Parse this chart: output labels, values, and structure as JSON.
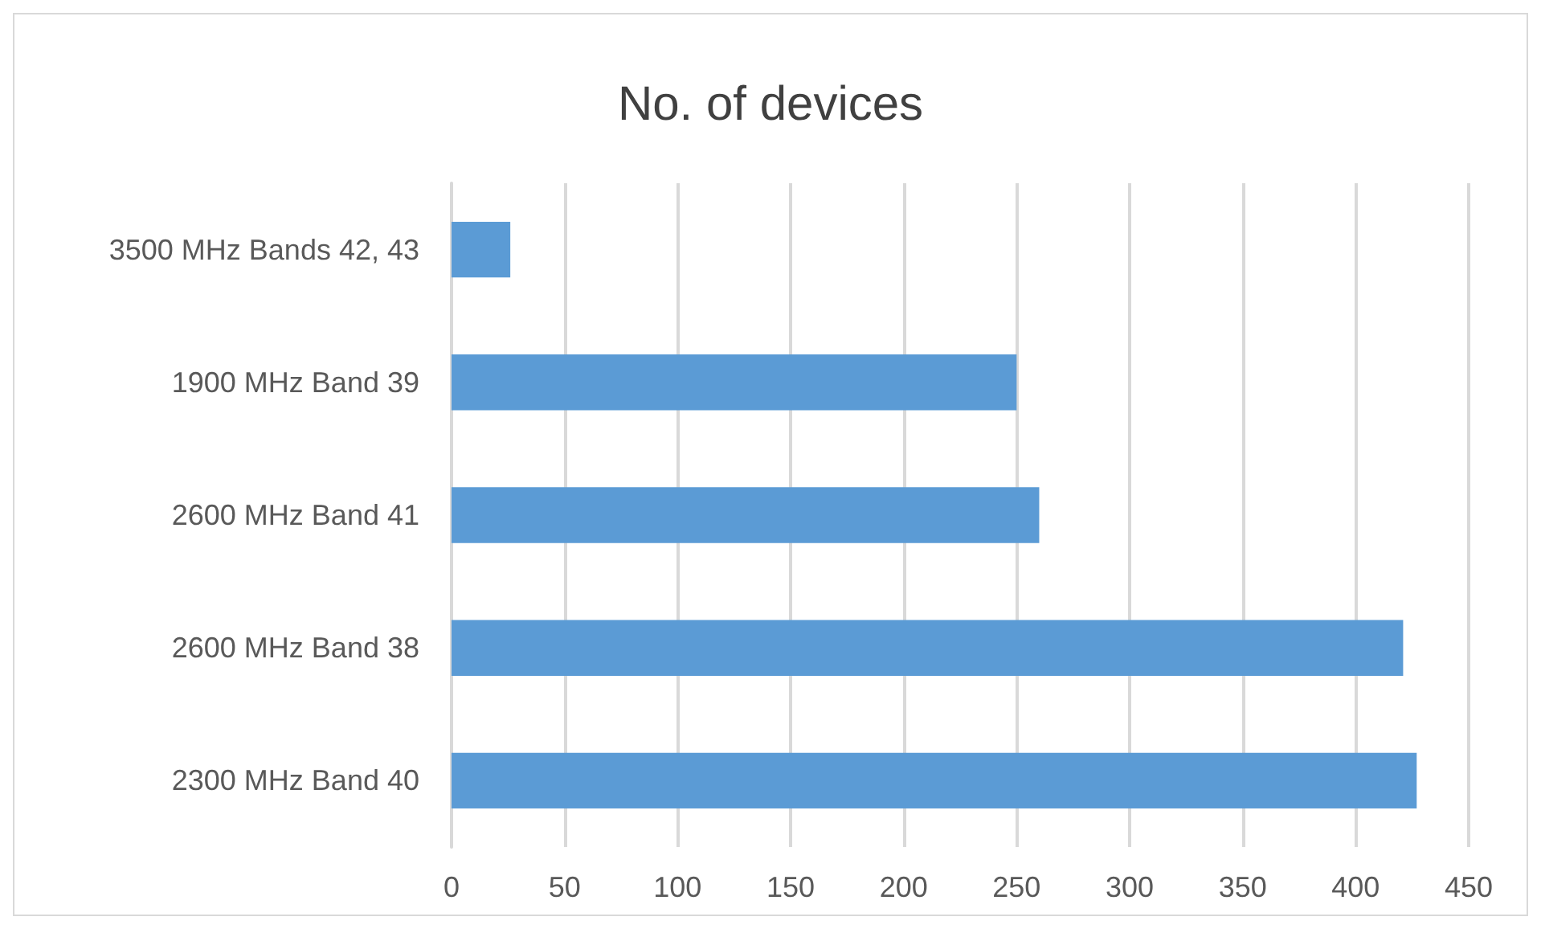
{
  "chart_data": {
    "type": "bar",
    "orientation": "horizontal",
    "title": "No. of devices",
    "categories": [
      "3500 MHz Bands 42, 43",
      "1900 MHz Band 39",
      "2600 MHz Band 41",
      "2600 MHz Band 38",
      "2300 MHz Band 40"
    ],
    "values": [
      26,
      250,
      260,
      421,
      427
    ],
    "color": "#5b9bd5",
    "xlim": [
      0,
      450
    ],
    "xticks": [
      0,
      50,
      100,
      150,
      200,
      250,
      300,
      350,
      400,
      450
    ],
    "grid": "x"
  }
}
